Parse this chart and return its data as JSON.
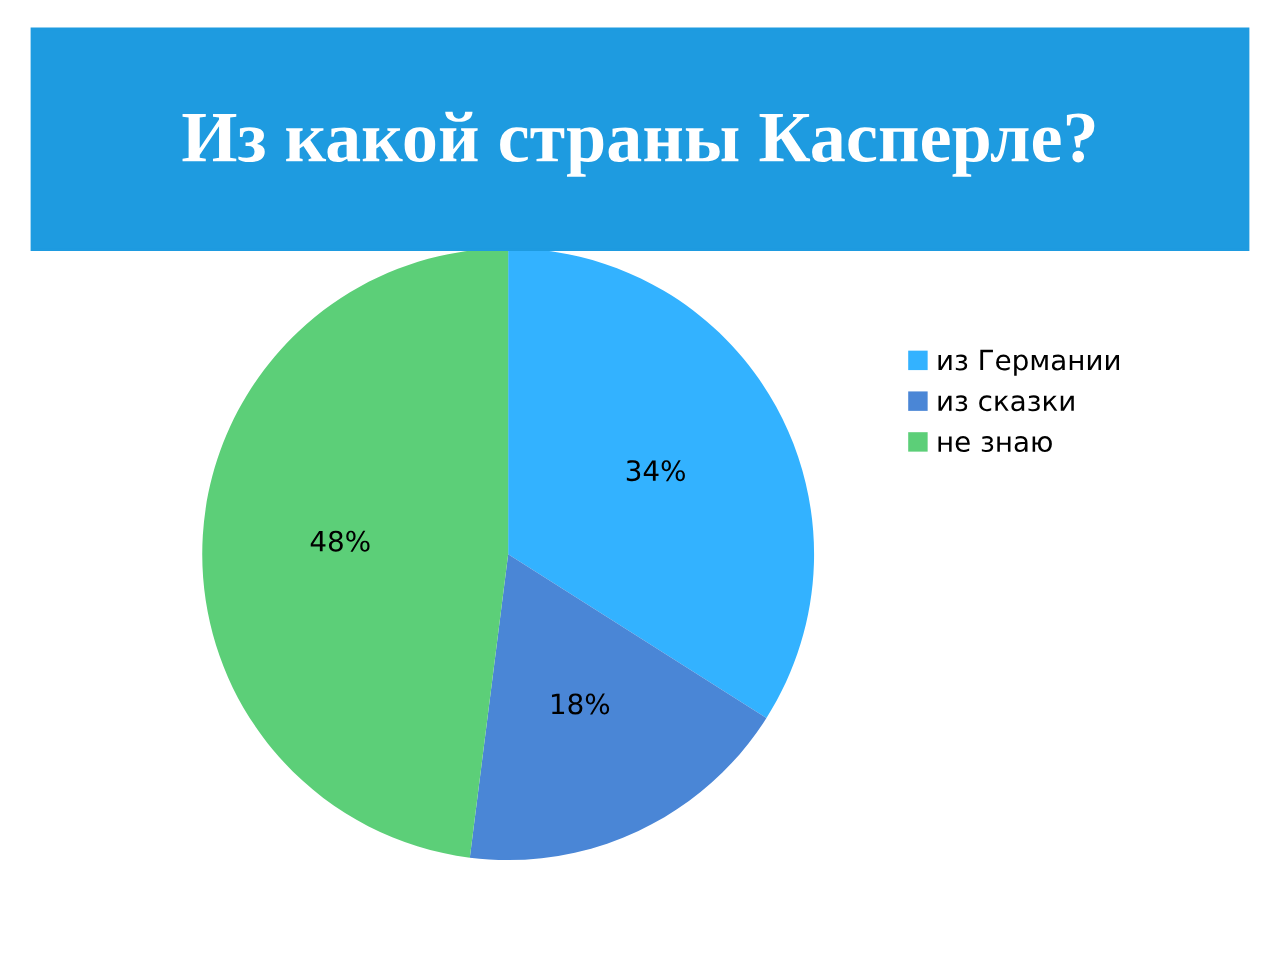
{
  "chart_data": {
    "type": "pie",
    "title": "Из какой страны Касперле?",
    "categories": [
      "из Германии",
      "из сказки",
      "не знаю"
    ],
    "values": [
      34,
      18,
      48
    ],
    "colors": [
      "#33b2ff",
      "#4a86d6",
      "#5ccf78"
    ],
    "value_labels": [
      "34%",
      "18%",
      "48%"
    ],
    "legend": "right"
  }
}
